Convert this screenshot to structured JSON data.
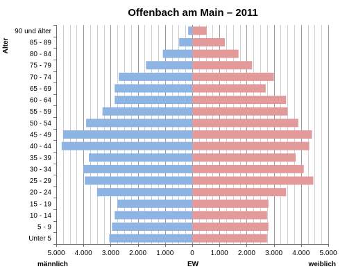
{
  "chart_data": {
    "type": "bar",
    "title": "Offenbach am Main – 2011",
    "ylabel": "Alter",
    "xlabel": "EW",
    "left_label": "männlich",
    "right_label": "weiblich",
    "categories": [
      "90 und älter",
      "85 - 89",
      "80 - 84",
      "75 - 79",
      "70 - 74",
      "65 - 69",
      "60 - 64",
      "55 - 59",
      "50 - 54",
      "45 - 49",
      "40 - 44",
      "35 - 39",
      "30 - 34",
      "25 - 29",
      "20 - 24",
      "15 - 19",
      "10 - 14",
      "5 - 9",
      "Unter 5"
    ],
    "series": [
      {
        "name": "männlich",
        "color": "#8db4e2",
        "values": [
          150,
          480,
          1080,
          1700,
          2700,
          2850,
          2850,
          3300,
          3900,
          4750,
          4800,
          3800,
          4000,
          3950,
          3500,
          2750,
          2850,
          2950,
          3050
        ]
      },
      {
        "name": "weiblich",
        "color": "#e29a9a",
        "values": [
          530,
          1200,
          1700,
          2200,
          3000,
          2700,
          3450,
          3500,
          3900,
          4400,
          4300,
          3800,
          4100,
          4450,
          3450,
          2800,
          2750,
          2800,
          2750
        ]
      }
    ],
    "xlim": [
      -5000,
      5000
    ],
    "xticks": [
      {
        "v": -5000,
        "label": "5.000"
      },
      {
        "v": -4000,
        "label": "4.000"
      },
      {
        "v": -3000,
        "label": "3.000"
      },
      {
        "v": -2000,
        "label": "2.000"
      },
      {
        "v": -1000,
        "label": "1.000"
      },
      {
        "v": 0,
        "label": "0"
      },
      {
        "v": 1000,
        "label": "1.000"
      },
      {
        "v": 2000,
        "label": "2.000"
      },
      {
        "v": 3000,
        "label": "3.000"
      },
      {
        "v": 4000,
        "label": "4.000"
      },
      {
        "v": 5000,
        "label": "5.000"
      }
    ],
    "grid": true,
    "grid_minor_step": 250
  }
}
